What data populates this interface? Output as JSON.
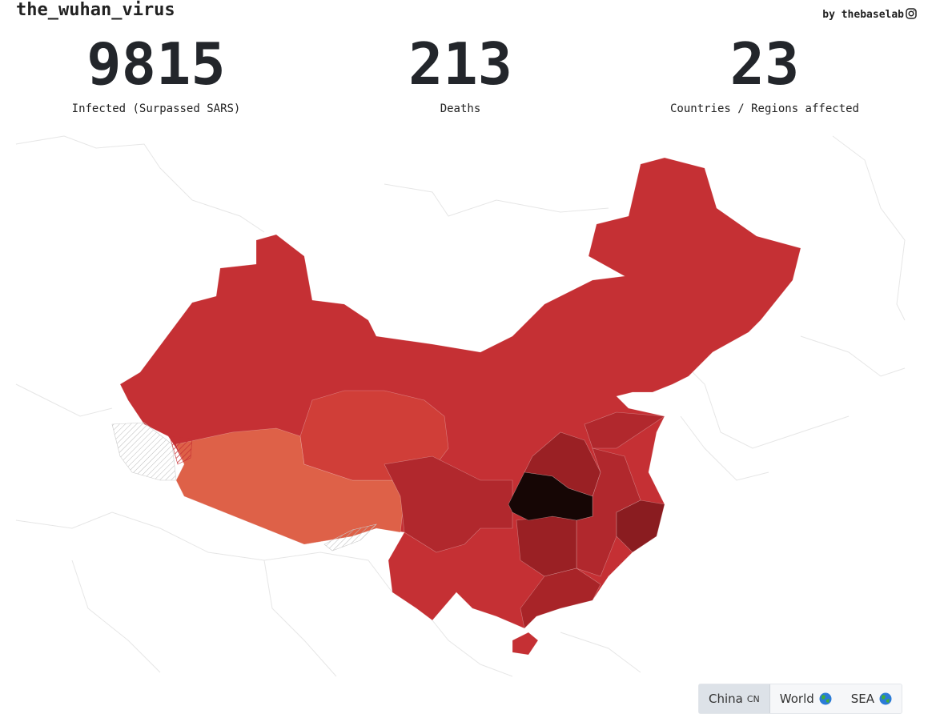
{
  "header": {
    "title": "the_wuhan_virus",
    "byline": "by thebaselab"
  },
  "stats": [
    {
      "value": 9815,
      "label": "Infected (Surpassed SARS)"
    },
    {
      "value": 213,
      "label": "Deaths"
    },
    {
      "value": 23,
      "label": "Countries / Regions affected"
    }
  ],
  "tabs": [
    {
      "label": "China",
      "badge": "CN"
    },
    {
      "label": "World"
    },
    {
      "label": "SEA"
    }
  ]
}
